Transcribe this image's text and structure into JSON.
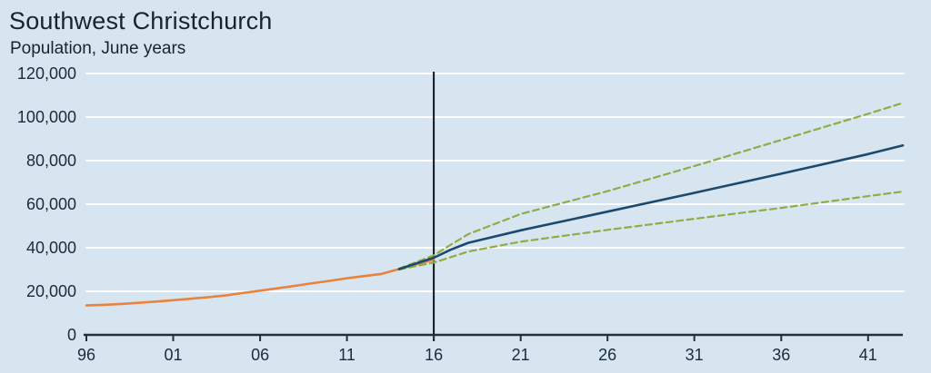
{
  "header": {
    "title": "Southwest Christchurch",
    "subtitle": "Population, June years"
  },
  "colors": {
    "background": "#d7e5f1",
    "gridline": "#fdfeff",
    "axis": "#22303d",
    "text": "#1c2b39",
    "reference_line": "#10181f",
    "estimate_line": "#e8823c",
    "medium_projection_line": "#1b4a6d",
    "high_low_projection_line": "#90ac45"
  },
  "chart_data": {
    "type": "line",
    "title": "Southwest Christchurch",
    "subtitle": "Population, June years",
    "xlabel": "",
    "ylabel": "",
    "xlim": [
      1996,
      2043
    ],
    "ylim": [
      0,
      120000
    ],
    "grid": "horizontal",
    "legend": "none",
    "x_ticks": [
      {
        "year": 1996,
        "label": "96"
      },
      {
        "year": 2001,
        "label": "01"
      },
      {
        "year": 2006,
        "label": "06"
      },
      {
        "year": 2011,
        "label": "11"
      },
      {
        "year": 2016,
        "label": "16"
      },
      {
        "year": 2021,
        "label": "21"
      },
      {
        "year": 2026,
        "label": "26"
      },
      {
        "year": 2031,
        "label": "31"
      },
      {
        "year": 2036,
        "label": "36"
      },
      {
        "year": 2041,
        "label": "41"
      }
    ],
    "y_ticks": [
      {
        "value": 0,
        "label": "0"
      },
      {
        "value": 20000,
        "label": "20,000"
      },
      {
        "value": 40000,
        "label": "40,000"
      },
      {
        "value": 60000,
        "label": "60,000"
      },
      {
        "value": 80000,
        "label": "80,000"
      },
      {
        "value": 100000,
        "label": "100,000"
      },
      {
        "value": 120000,
        "label": "120,000"
      }
    ],
    "reference_line": {
      "axis": "x",
      "year": 2016,
      "tick_label": "16"
    },
    "series": [
      {
        "name": "estimate",
        "line": "solid",
        "color": "#e8823c",
        "points": [
          [
            1996,
            13500
          ],
          [
            1997,
            13800
          ],
          [
            1998,
            14200
          ],
          [
            1999,
            14700
          ],
          [
            2000,
            15300
          ],
          [
            2001,
            15900
          ],
          [
            2002,
            16600
          ],
          [
            2003,
            17300
          ],
          [
            2004,
            18100
          ],
          [
            2005,
            19200
          ],
          [
            2006,
            20300
          ],
          [
            2007,
            21400
          ],
          [
            2008,
            22500
          ],
          [
            2009,
            23700
          ],
          [
            2010,
            24800
          ],
          [
            2011,
            26000
          ],
          [
            2012,
            27000
          ],
          [
            2013,
            28000
          ],
          [
            2014,
            30200
          ],
          [
            2015,
            32400
          ],
          [
            2016,
            34500
          ]
        ]
      },
      {
        "name": "projection-high",
        "line": "dashed",
        "color": "#90ac45",
        "points": [
          [
            2014,
            30400
          ],
          [
            2016,
            36500
          ],
          [
            2017,
            41500
          ],
          [
            2018,
            46300
          ],
          [
            2021,
            55500
          ],
          [
            2026,
            66000
          ],
          [
            2031,
            77500
          ],
          [
            2036,
            89500
          ],
          [
            2041,
            101500
          ],
          [
            2043,
            106500
          ]
        ]
      },
      {
        "name": "projection-low",
        "line": "dashed",
        "color": "#90ac45",
        "points": [
          [
            2014,
            30000
          ],
          [
            2016,
            33200
          ],
          [
            2018,
            38300
          ],
          [
            2021,
            42800
          ],
          [
            2026,
            48200
          ],
          [
            2031,
            53300
          ],
          [
            2036,
            58300
          ],
          [
            2041,
            63700
          ],
          [
            2043,
            65800
          ]
        ]
      },
      {
        "name": "projection-medium",
        "line": "solid",
        "color": "#1b4a6d",
        "points": [
          [
            2014,
            30200
          ],
          [
            2016,
            35400
          ],
          [
            2017,
            39200
          ],
          [
            2018,
            42300
          ],
          [
            2021,
            48000
          ],
          [
            2026,
            56600
          ],
          [
            2031,
            65200
          ],
          [
            2036,
            74000
          ],
          [
            2041,
            83000
          ],
          [
            2043,
            87000
          ]
        ]
      }
    ]
  }
}
